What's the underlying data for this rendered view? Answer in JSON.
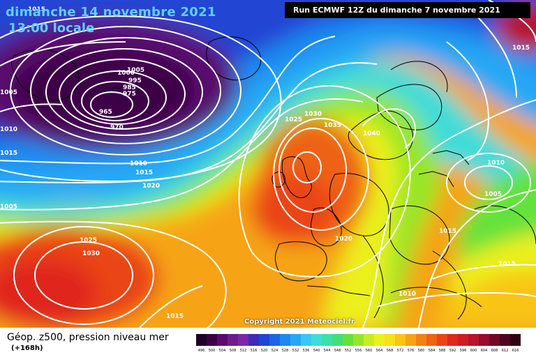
{
  "header": {
    "date_line": "dimanche 14 novembre 2021",
    "time_line": "13:00 locale",
    "run_info": "Run ECMWF 12Z du dimanche 7 novembre 2021"
  },
  "copyright": "Copyright 2021 Meteociel.fr",
  "legend": {
    "title": "Géop. z500, pression niveau mer",
    "subtitle": "(+168h)",
    "ticks": [
      "496",
      "500",
      "504",
      "508",
      "512",
      "516",
      "520",
      "524",
      "528",
      "532",
      "536",
      "540",
      "544",
      "548",
      "552",
      "556",
      "560",
      "564",
      "568",
      "572",
      "576",
      "580",
      "584",
      "588",
      "592",
      "596",
      "600",
      "604",
      "608",
      "612",
      "616"
    ],
    "colors": [
      "#1f0026",
      "#3c0046",
      "#5a0a6e",
      "#6e1a8c",
      "#7c26a6",
      "#3c2cb8",
      "#2044d4",
      "#1a64e6",
      "#1c88f0",
      "#26a8f4",
      "#38c8f0",
      "#40dcd8",
      "#3ce0a8",
      "#40e078",
      "#64e23a",
      "#96e628",
      "#c8ec20",
      "#ecf01c",
      "#f8e018",
      "#f8c416",
      "#f6a414",
      "#f28212",
      "#ee6212",
      "#ea4416",
      "#e0281c",
      "#d01c24",
      "#b8142c",
      "#980c2c",
      "#720826",
      "#4c0620",
      "#2e0412"
    ]
  },
  "isobars": [
    {
      "label": "1015",
      "pos": "top-left"
    },
    {
      "label": "1005",
      "pos": "left-edge"
    },
    {
      "label": "1010",
      "pos": "left-edge"
    },
    {
      "label": "1015",
      "pos": "left-edge"
    },
    {
      "label": "1005",
      "pos": "left-edge-low"
    },
    {
      "label": "1000",
      "pos": "iceland-low"
    },
    {
      "label": "1005",
      "pos": "iceland-low"
    },
    {
      "label": "995",
      "pos": "iceland-low"
    },
    {
      "label": "985",
      "pos": "iceland-low"
    },
    {
      "label": "975",
      "pos": "iceland-low"
    },
    {
      "label": "965",
      "pos": "iceland-low"
    },
    {
      "label": "970",
      "pos": "iceland-low"
    },
    {
      "label": "1010",
      "pos": "mid-atlantic"
    },
    {
      "label": "1015",
      "pos": "mid-atlantic"
    },
    {
      "label": "1020",
      "pos": "mid-atlantic"
    },
    {
      "label": "1025",
      "pos": "azores"
    },
    {
      "label": "1030",
      "pos": "azores"
    },
    {
      "label": "1015",
      "pos": "south"
    },
    {
      "label": "1025",
      "pos": "uk-high"
    },
    {
      "label": "1030",
      "pos": "uk-high"
    },
    {
      "label": "1035",
      "pos": "uk-high"
    },
    {
      "label": "1040",
      "pos": "scandinavia"
    },
    {
      "label": "1020",
      "pos": "europe"
    },
    {
      "label": "1010",
      "pos": "east"
    },
    {
      "label": "1005",
      "pos": "east"
    },
    {
      "label": "1015",
      "pos": "east"
    },
    {
      "label": "1015",
      "pos": "southeast"
    },
    {
      "label": "1010",
      "pos": "mediterranean"
    },
    {
      "label": "1015",
      "pos": "top-right"
    }
  ]
}
